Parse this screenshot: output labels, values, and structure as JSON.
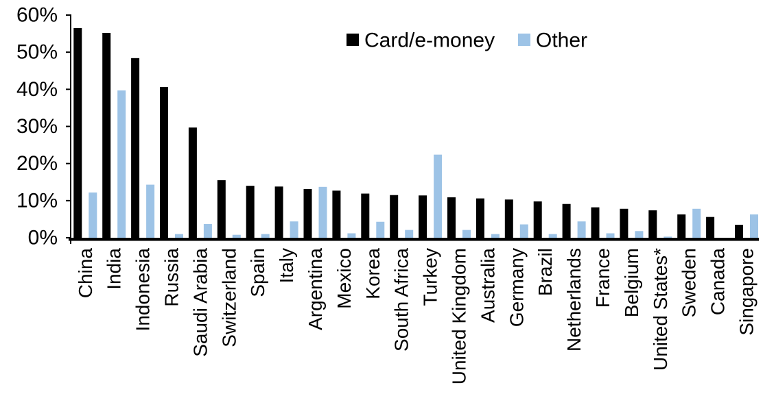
{
  "chart_data": {
    "type": "bar",
    "title": "",
    "xlabel": "",
    "ylabel": "",
    "categories": [
      "China",
      "India",
      "Indonesia",
      "Russia",
      "Saudi Arabia",
      "Switzerland",
      "Spain",
      "Italy",
      "Argentina",
      "Mexico",
      "Korea",
      "South Africa",
      "Turkey",
      "United Kingdom",
      "Australia",
      "Germany",
      "Brazil",
      "Netherlands",
      "France",
      "Belgium",
      "United States*",
      "Sweden",
      "Canada",
      "Singapore"
    ],
    "series": [
      {
        "name": "Card/e-money",
        "color": "#000000",
        "values": [
          56.5,
          55.2,
          48.4,
          40.6,
          29.7,
          15.5,
          14.0,
          13.8,
          13.1,
          12.7,
          11.9,
          11.5,
          11.4,
          10.9,
          10.6,
          10.3,
          9.8,
          9.1,
          8.2,
          7.8,
          7.4,
          6.3,
          5.6,
          3.5
        ]
      },
      {
        "name": "Other",
        "color": "#9DC3E6",
        "values": [
          12.2,
          39.7,
          14.3,
          1.0,
          3.7,
          0.8,
          1.0,
          4.4,
          13.7,
          1.2,
          4.3,
          2.1,
          22.4,
          2.1,
          1.0,
          3.6,
          1.0,
          4.4,
          1.2,
          1.8,
          0.3,
          7.8,
          0.0,
          6.3
        ]
      }
    ],
    "ylim": [
      0,
      60
    ],
    "yticks": [
      0,
      10,
      20,
      30,
      40,
      50,
      60
    ],
    "ytick_suffix": "%",
    "axis_color": "#000000",
    "grid": false,
    "legend_position": "top-center"
  }
}
